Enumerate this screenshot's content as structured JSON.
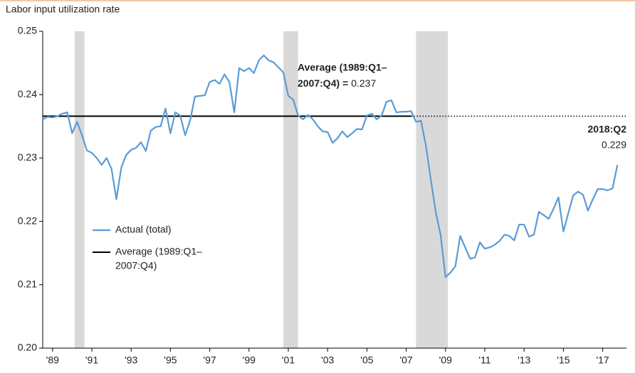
{
  "chart_data": {
    "type": "line",
    "y_label": "Labor input utilization rate",
    "x": [
      1989,
      1989.25,
      1989.5,
      1989.75,
      1990,
      1990.25,
      1990.5,
      1990.75,
      1991,
      1991.25,
      1991.5,
      1991.75,
      1992,
      1992.25,
      1992.5,
      1992.75,
      1993,
      1993.25,
      1993.5,
      1993.75,
      1994,
      1994.25,
      1994.5,
      1994.75,
      1995,
      1995.25,
      1995.5,
      1995.75,
      1996,
      1996.25,
      1996.5,
      1996.75,
      1997,
      1997.25,
      1997.5,
      1997.75,
      1998,
      1998.25,
      1998.5,
      1998.75,
      1999,
      1999.25,
      1999.5,
      1999.75,
      2000,
      2000.25,
      2000.5,
      2000.75,
      2001,
      2001.25,
      2001.5,
      2001.75,
      2002,
      2002.25,
      2002.5,
      2002.75,
      2003,
      2003.25,
      2003.5,
      2003.75,
      2004,
      2004.25,
      2004.5,
      2004.75,
      2005,
      2005.25,
      2005.5,
      2005.75,
      2006,
      2006.25,
      2006.5,
      2006.75,
      2007,
      2007.25,
      2007.5,
      2007.75,
      2008,
      2008.25,
      2008.5,
      2008.75,
      2009,
      2009.25,
      2009.5,
      2009.75,
      2010,
      2010.25,
      2010.5,
      2010.75,
      2011,
      2011.25,
      2011.5,
      2011.75,
      2012,
      2012.25,
      2012.5,
      2012.75,
      2013,
      2013.25,
      2013.5,
      2013.75,
      2014,
      2014.25,
      2014.5,
      2014.75,
      2015,
      2015.25,
      2015.5,
      2015.75,
      2016,
      2016.25,
      2016.5,
      2016.75,
      2017,
      2017.25,
      2017.5,
      2017.75,
      2018,
      2018.25
    ],
    "series": [
      {
        "name": "Actual (total)",
        "color": "#5b9bd5",
        "values": [
          0.2361,
          0.2365,
          0.2364,
          0.2366,
          0.237,
          0.2372,
          0.2339,
          0.2357,
          0.2336,
          0.2312,
          0.2308,
          0.23,
          0.2289,
          0.23,
          0.2283,
          0.2235,
          0.2285,
          0.2305,
          0.2313,
          0.2316,
          0.2325,
          0.2311,
          0.2343,
          0.2349,
          0.235,
          0.2378,
          0.2339,
          0.2372,
          0.2367,
          0.2336,
          0.2359,
          0.2397,
          0.2398,
          0.2399,
          0.242,
          0.2423,
          0.2417,
          0.2432,
          0.242,
          0.2372,
          0.2442,
          0.2437,
          0.2442,
          0.2434,
          0.2454,
          0.2462,
          0.2454,
          0.2451,
          0.2443,
          0.2435,
          0.2398,
          0.2392,
          0.2367,
          0.2361,
          0.2368,
          0.2361,
          0.235,
          0.2342,
          0.2341,
          0.2324,
          0.2331,
          0.2342,
          0.2333,
          0.2339,
          0.2346,
          0.2345,
          0.2367,
          0.237,
          0.2361,
          0.2367,
          0.2389,
          0.2391,
          0.2372,
          0.2373,
          0.2373,
          0.2374,
          0.2357,
          0.2359,
          0.232,
          0.2267,
          0.2215,
          0.2179,
          0.2112,
          0.2119,
          0.2129,
          0.2177,
          0.2159,
          0.2141,
          0.2143,
          0.2167,
          0.2157,
          0.2159,
          0.2163,
          0.2169,
          0.2179,
          0.2177,
          0.217,
          0.2195,
          0.2195,
          0.2176,
          0.2179,
          0.2215,
          0.221,
          0.2204,
          0.222,
          0.2238,
          0.2184,
          0.2213,
          0.2241,
          0.2247,
          0.2242,
          0.2217,
          0.2235,
          0.2251,
          0.2251,
          0.2249,
          0.2252,
          0.2289
        ]
      }
    ],
    "average": {
      "name": [
        "Average (1989:Q1–",
        "2007:Q4)"
      ],
      "color": "#000000",
      "value": 0.2366,
      "end": 2007.75,
      "annotation": [
        "Average (1989:Q1–",
        "2007:Q4) ="
      ],
      "value_label": "0.237"
    },
    "end_label": {
      "title": "2018:Q2",
      "value": "0.229"
    },
    "recessions": [
      [
        1990.625,
        1991.125
      ],
      [
        2001.25,
        2002.0
      ],
      [
        2008.0,
        2009.625
      ]
    ],
    "recession_color": "#d9d9d9",
    "xlim": [
      1989,
      2018.71
    ],
    "xticks": [
      {
        "value": 1989.5,
        "label": "'89"
      },
      {
        "value": 1991.5,
        "label": "'91"
      },
      {
        "value": 1993.5,
        "label": "'93"
      },
      {
        "value": 1995.5,
        "label": "'95"
      },
      {
        "value": 1997.5,
        "label": "'97"
      },
      {
        "value": 1999.5,
        "label": "'99"
      },
      {
        "value": 2001.5,
        "label": "'01"
      },
      {
        "value": 2003.5,
        "label": "'03"
      },
      {
        "value": 2005.5,
        "label": "'05"
      },
      {
        "value": 2007.5,
        "label": "'07"
      },
      {
        "value": 2009.5,
        "label": "'09"
      },
      {
        "value": 2011.5,
        "label": "'11"
      },
      {
        "value": 2013.5,
        "label": "'13"
      },
      {
        "value": 2015.5,
        "label": "'15"
      },
      {
        "value": 2017.5,
        "label": "'17"
      }
    ],
    "ylim": [
      0.2,
      0.25
    ],
    "yticks": [
      {
        "value": 0.2,
        "label": "0.20"
      },
      0.21,
      0.22,
      0.23,
      0.24,
      0.25
    ],
    "grid": false
  }
}
